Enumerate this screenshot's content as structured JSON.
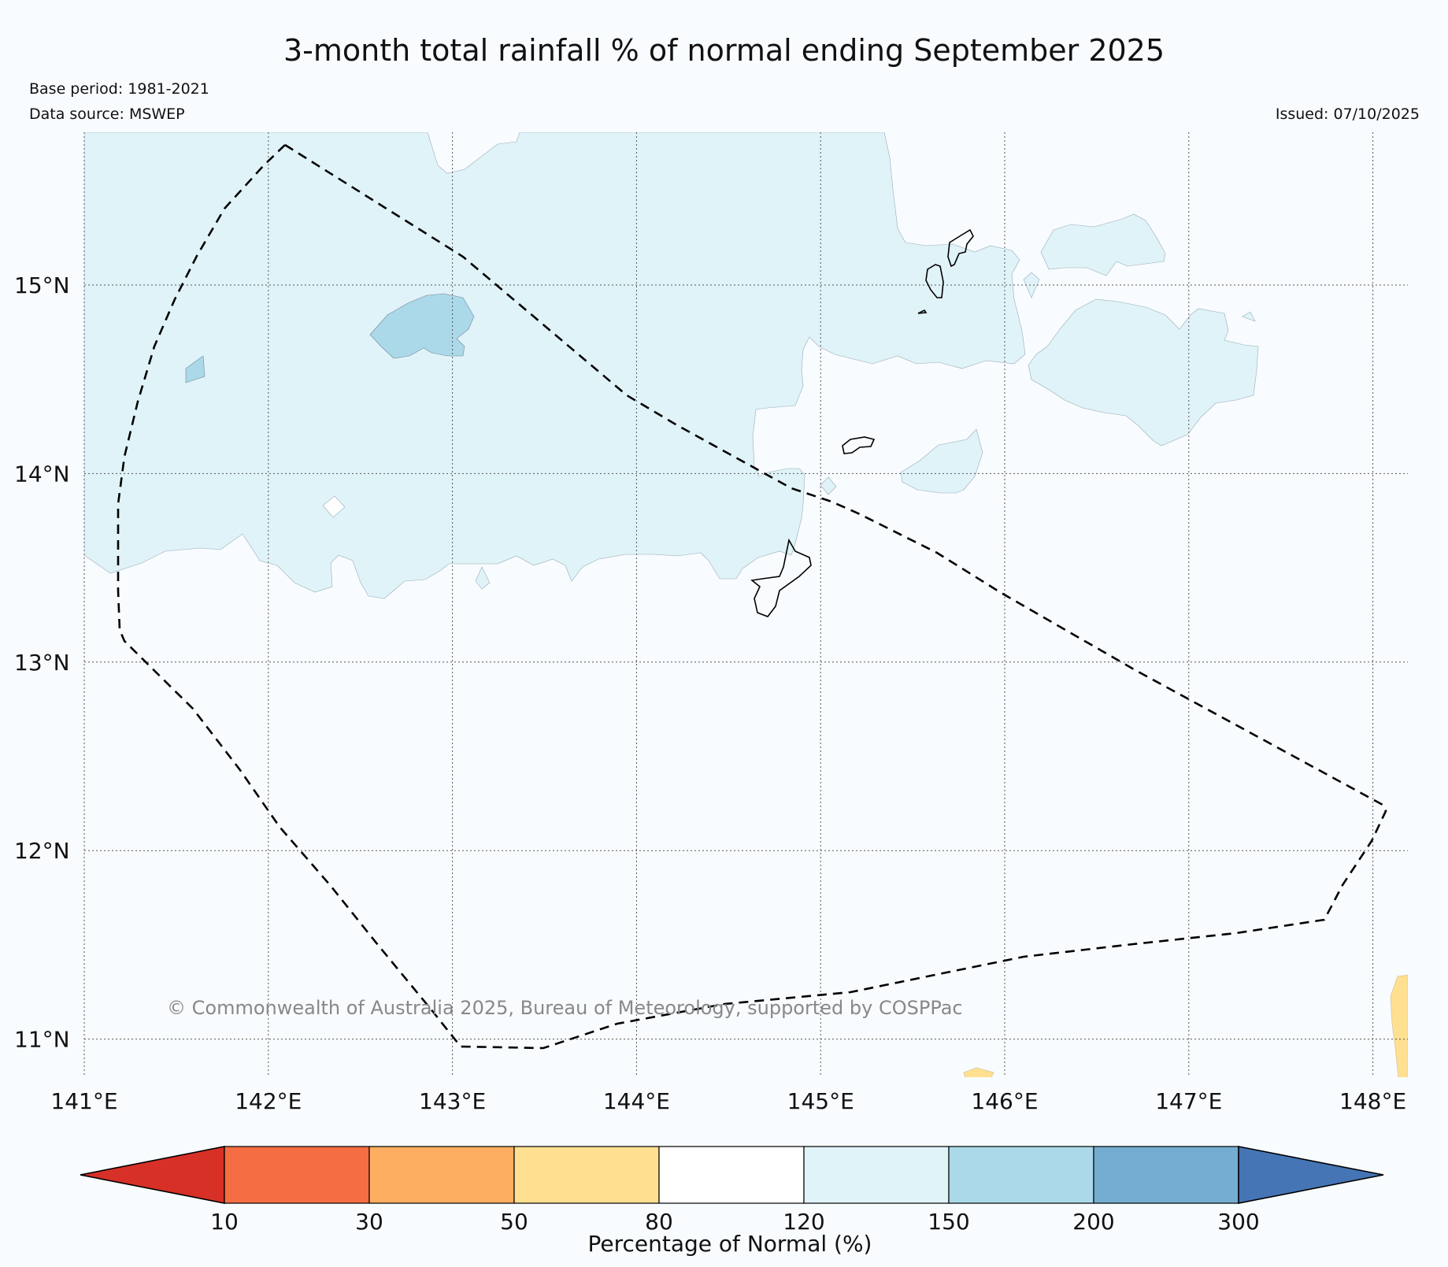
{
  "title": "3-month total rainfall % of normal ending September 2025",
  "base_period": "Base period: 1981-2021",
  "data_source": "Data source: MSWEP",
  "issued": "Issued: 07/10/2025",
  "copyright": "© Commonwealth of Australia 2025, Bureau of Meteorology, supported by COSPPac",
  "map": {
    "lon_range": [
      141,
      148.2
    ],
    "lat_range": [
      10.8,
      15.8
    ],
    "lon_ticks": [
      {
        "value": 141,
        "label": "141°E"
      },
      {
        "value": 142,
        "label": "142°E"
      },
      {
        "value": 143,
        "label": "143°E"
      },
      {
        "value": 144,
        "label": "144°E"
      },
      {
        "value": 145,
        "label": "145°E"
      },
      {
        "value": 146,
        "label": "146°E"
      },
      {
        "value": 147,
        "label": "147°E"
      },
      {
        "value": 148,
        "label": "148°E"
      }
    ],
    "lat_ticks": [
      {
        "value": 15,
        "label": "15°N"
      },
      {
        "value": 14,
        "label": "14°N"
      },
      {
        "value": 13,
        "label": "13°N"
      },
      {
        "value": 12,
        "label": "12°N"
      },
      {
        "value": 11,
        "label": "11°N"
      }
    ]
  },
  "colorbar": {
    "label": "Percentage of Normal (%)",
    "bins": [
      {
        "color": "#d73027"
      },
      {
        "color": "#f46d43"
      },
      {
        "color": "#fdae61"
      },
      {
        "color": "#fee090"
      },
      {
        "color": "#ffffff"
      },
      {
        "color": "#e0f3f8"
      },
      {
        "color": "#abd9e9"
      },
      {
        "color": "#74add1"
      },
      {
        "color": "#4575b4"
      }
    ],
    "tick_labels": [
      "10",
      "30",
      "50",
      "80",
      "120",
      "150",
      "200",
      "300"
    ]
  }
}
